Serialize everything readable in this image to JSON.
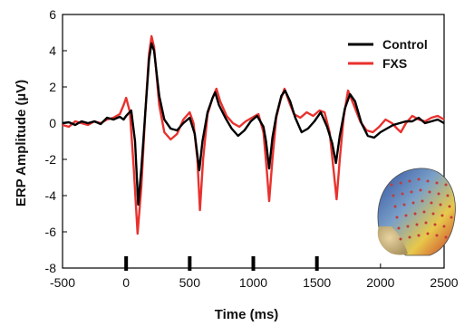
{
  "chart_data": {
    "type": "line",
    "title": "",
    "xlabel": "Time (ms)",
    "ylabel": "ERP Amplitude (µV)",
    "xlim": [
      -500,
      2500
    ],
    "ylim": [
      -8,
      6
    ],
    "xticks": [
      -500,
      0,
      500,
      1000,
      1500,
      2000,
      2500
    ],
    "yticks": [
      -8,
      -6,
      -4,
      -2,
      0,
      2,
      4,
      6
    ],
    "grid": false,
    "legend_position": "top-right",
    "stimulus_markers_ms": [
      0,
      500,
      1000,
      1500
    ],
    "series": [
      {
        "name": "Control",
        "color": "#000000",
        "points": [
          [
            -500,
            0.0
          ],
          [
            -450,
            0.05
          ],
          [
            -400,
            -0.1
          ],
          [
            -350,
            0.1
          ],
          [
            -300,
            0.0
          ],
          [
            -250,
            0.1
          ],
          [
            -200,
            -0.05
          ],
          [
            -150,
            0.3
          ],
          [
            -100,
            0.2
          ],
          [
            -50,
            0.35
          ],
          [
            -20,
            0.2
          ],
          [
            0,
            0.4
          ],
          [
            40,
            0.7
          ],
          [
            70,
            -1.0
          ],
          [
            95,
            -4.5
          ],
          [
            120,
            -2.5
          ],
          [
            150,
            0.5
          ],
          [
            180,
            3.5
          ],
          [
            200,
            4.4
          ],
          [
            220,
            4.0
          ],
          [
            260,
            1.5
          ],
          [
            300,
            0.2
          ],
          [
            350,
            -0.3
          ],
          [
            400,
            -0.4
          ],
          [
            450,
            0.0
          ],
          [
            500,
            0.3
          ],
          [
            540,
            -0.6
          ],
          [
            575,
            -2.6
          ],
          [
            600,
            -1.0
          ],
          [
            640,
            0.6
          ],
          [
            680,
            1.4
          ],
          [
            700,
            1.7
          ],
          [
            730,
            1.0
          ],
          [
            780,
            0.3
          ],
          [
            830,
            -0.3
          ],
          [
            880,
            -0.7
          ],
          [
            930,
            -0.4
          ],
          [
            980,
            0.1
          ],
          [
            1030,
            0.4
          ],
          [
            1080,
            -0.2
          ],
          [
            1100,
            -1.0
          ],
          [
            1125,
            -2.5
          ],
          [
            1150,
            -0.8
          ],
          [
            1180,
            0.4
          ],
          [
            1220,
            1.5
          ],
          [
            1250,
            1.8
          ],
          [
            1290,
            1.2
          ],
          [
            1330,
            0.3
          ],
          [
            1380,
            -0.5
          ],
          [
            1430,
            -0.3
          ],
          [
            1480,
            0.1
          ],
          [
            1530,
            0.6
          ],
          [
            1580,
            -0.2
          ],
          [
            1620,
            -1.1
          ],
          [
            1650,
            -2.2
          ],
          [
            1680,
            -0.7
          ],
          [
            1720,
            0.8
          ],
          [
            1760,
            1.6
          ],
          [
            1800,
            1.2
          ],
          [
            1850,
            0.0
          ],
          [
            1900,
            -0.7
          ],
          [
            1950,
            -0.8
          ],
          [
            2000,
            -0.5
          ],
          [
            2050,
            -0.3
          ],
          [
            2100,
            -0.1
          ],
          [
            2150,
            0.0
          ],
          [
            2200,
            0.1
          ],
          [
            2250,
            0.1
          ],
          [
            2300,
            0.3
          ],
          [
            2350,
            0.0
          ],
          [
            2400,
            0.1
          ],
          [
            2450,
            0.2
          ],
          [
            2500,
            0.0
          ]
        ]
      },
      {
        "name": "FXS",
        "color": "#e8322e",
        "points": [
          [
            -500,
            -0.1
          ],
          [
            -450,
            -0.2
          ],
          [
            -400,
            0.1
          ],
          [
            -350,
            0.0
          ],
          [
            -300,
            -0.1
          ],
          [
            -250,
            0.1
          ],
          [
            -200,
            0.0
          ],
          [
            -150,
            0.2
          ],
          [
            -100,
            0.3
          ],
          [
            -50,
            0.5
          ],
          [
            -20,
            1.0
          ],
          [
            0,
            1.4
          ],
          [
            30,
            0.6
          ],
          [
            60,
            -2.5
          ],
          [
            90,
            -6.1
          ],
          [
            120,
            -3.5
          ],
          [
            150,
            0.5
          ],
          [
            180,
            3.8
          ],
          [
            200,
            4.8
          ],
          [
            220,
            4.2
          ],
          [
            260,
            1.0
          ],
          [
            300,
            -0.5
          ],
          [
            350,
            -0.9
          ],
          [
            400,
            -0.6
          ],
          [
            450,
            0.2
          ],
          [
            500,
            0.6
          ],
          [
            530,
            0.0
          ],
          [
            560,
            -2.0
          ],
          [
            580,
            -4.8
          ],
          [
            605,
            -2.0
          ],
          [
            640,
            0.5
          ],
          [
            680,
            1.4
          ],
          [
            710,
            1.9
          ],
          [
            740,
            1.2
          ],
          [
            790,
            0.4
          ],
          [
            840,
            0.0
          ],
          [
            890,
            -0.2
          ],
          [
            940,
            0.1
          ],
          [
            990,
            0.3
          ],
          [
            1040,
            0.5
          ],
          [
            1080,
            -0.5
          ],
          [
            1105,
            -2.5
          ],
          [
            1125,
            -4.3
          ],
          [
            1150,
            -2.0
          ],
          [
            1180,
            0.3
          ],
          [
            1215,
            1.3
          ],
          [
            1245,
            1.9
          ],
          [
            1280,
            1.2
          ],
          [
            1320,
            0.5
          ],
          [
            1370,
            0.3
          ],
          [
            1420,
            0.6
          ],
          [
            1470,
            0.4
          ],
          [
            1520,
            0.7
          ],
          [
            1560,
            0.6
          ],
          [
            1600,
            -0.5
          ],
          [
            1630,
            -2.5
          ],
          [
            1655,
            -4.2
          ],
          [
            1680,
            -2.0
          ],
          [
            1710,
            0.3
          ],
          [
            1745,
            1.8
          ],
          [
            1790,
            1.0
          ],
          [
            1840,
            0.1
          ],
          [
            1890,
            -0.4
          ],
          [
            1940,
            -0.5
          ],
          [
            1990,
            -0.2
          ],
          [
            2040,
            0.2
          ],
          [
            2090,
            0.0
          ],
          [
            2130,
            -0.3
          ],
          [
            2160,
            -0.5
          ],
          [
            2200,
            0.0
          ],
          [
            2250,
            0.4
          ],
          [
            2300,
            0.2
          ],
          [
            2350,
            0.1
          ],
          [
            2400,
            0.3
          ],
          [
            2450,
            0.4
          ],
          [
            2500,
            0.2
          ]
        ]
      }
    ]
  },
  "inset": {
    "icon": "head-electrode-map-icon",
    "colors": [
      "#2f4f9f",
      "#7aa0c8",
      "#e8c84a",
      "#c8352a"
    ]
  }
}
